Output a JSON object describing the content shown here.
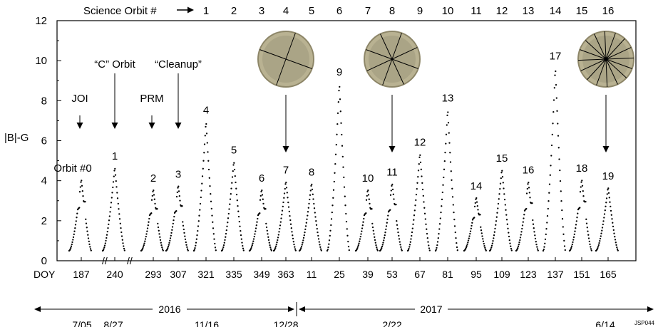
{
  "chart_data": {
    "type": "line",
    "ylabel": "|B|-G",
    "ylim": [
      0,
      12
    ],
    "y_ticks": [
      "0",
      "2",
      "4",
      "6",
      "8",
      "10",
      "12"
    ],
    "science_orbit_label": "Science Orbit #",
    "science_orbits": [
      "1",
      "2",
      "3",
      "4",
      "5",
      "6",
      "7",
      "8",
      "9",
      "10",
      "11",
      "12",
      "13",
      "14",
      "15",
      "16"
    ],
    "doy_label": "DOY",
    "doy_ticks": [
      "187",
      "240",
      "293",
      "307",
      "321",
      "335",
      "349",
      "363",
      "11",
      "25",
      "39",
      "53",
      "67",
      "81",
      "95",
      "109",
      "123",
      "137",
      "151",
      "165"
    ],
    "year_labels": [
      "2016",
      "2017"
    ],
    "dates": [
      "7/05",
      "8/27",
      "11/16",
      "12/28",
      "2/22",
      "6/14"
    ],
    "orbit_labels": [
      "Orbit #0",
      "1",
      "2",
      "3",
      "4",
      "5",
      "6",
      "7",
      "8",
      "9",
      "10",
      "11",
      "12",
      "13",
      "14",
      "15",
      "16",
      "17",
      "18",
      "19"
    ],
    "peaks": [
      4.1,
      4.7,
      3.6,
      3.8,
      7.0,
      5.0,
      3.6,
      4.0,
      3.9,
      8.9,
      3.6,
      3.9,
      5.4,
      7.6,
      3.2,
      4.6,
      4.0,
      9.7,
      4.1,
      3.7
    ],
    "annotations": [
      "JOI",
      "“C” Orbit",
      "PRM",
      "“Cleanup”"
    ],
    "footer_code": "JSP044"
  }
}
